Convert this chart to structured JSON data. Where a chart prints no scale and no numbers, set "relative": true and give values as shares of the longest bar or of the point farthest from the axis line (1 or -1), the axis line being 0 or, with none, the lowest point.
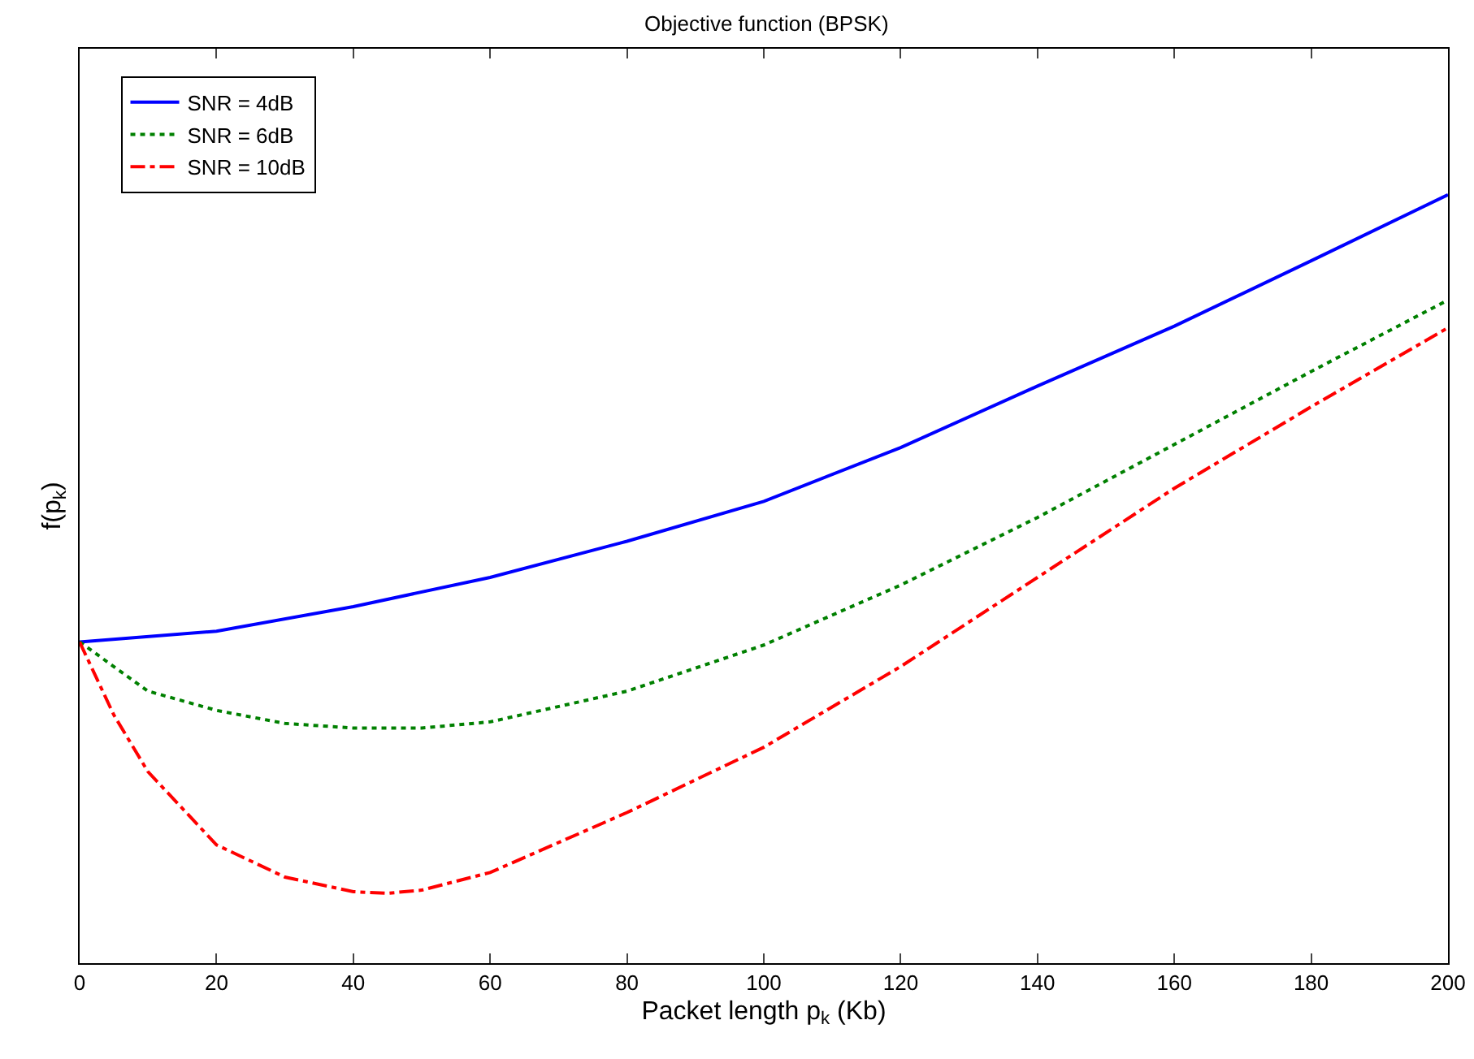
{
  "chart_data": {
    "type": "line",
    "title": "Objective function (BPSK)",
    "xlabel": "Packet length p$_{k}$ (Kb)",
    "ylabel": "f(p$_{k}$)",
    "relative": true,
    "xlim": [
      0,
      200
    ],
    "xticks": [
      0,
      20,
      40,
      60,
      80,
      100,
      120,
      140,
      160,
      180,
      200
    ],
    "grid": false,
    "legend": "top left",
    "marker": "none",
    "series": [
      {
        "name": "SNR = 4dB",
        "color": "#0000ff",
        "line_style": "solid",
        "x": [
          0,
          20,
          40,
          60,
          80,
          100,
          120,
          140,
          160,
          180,
          200
        ],
        "values": [
          0.418,
          0.432,
          0.464,
          0.502,
          0.549,
          0.601,
          0.671,
          0.751,
          0.829,
          0.914,
          1
        ]
      },
      {
        "name": "SNR = 6dB",
        "color": "#008000",
        "line_style": "dotted",
        "x": [
          0,
          10,
          20,
          30,
          40,
          50,
          60,
          80,
          100,
          120,
          140,
          160,
          180,
          200
        ],
        "values": [
          0.418,
          0.354,
          0.329,
          0.312,
          0.306,
          0.306,
          0.314,
          0.354,
          0.414,
          0.492,
          0.58,
          0.675,
          0.77,
          0.863
        ]
      },
      {
        "name": "SNR = 10dB",
        "color": "#ff0000",
        "line_style": "dashdot",
        "x": [
          0,
          5,
          10,
          20,
          30,
          40,
          45,
          50,
          60,
          80,
          100,
          120,
          140,
          160,
          180,
          200
        ],
        "values": [
          0.418,
          0.323,
          0.249,
          0.154,
          0.112,
          0.093,
          0.091,
          0.095,
          0.118,
          0.196,
          0.281,
          0.386,
          0.502,
          0.618,
          0.724,
          0.827
        ]
      }
    ]
  }
}
